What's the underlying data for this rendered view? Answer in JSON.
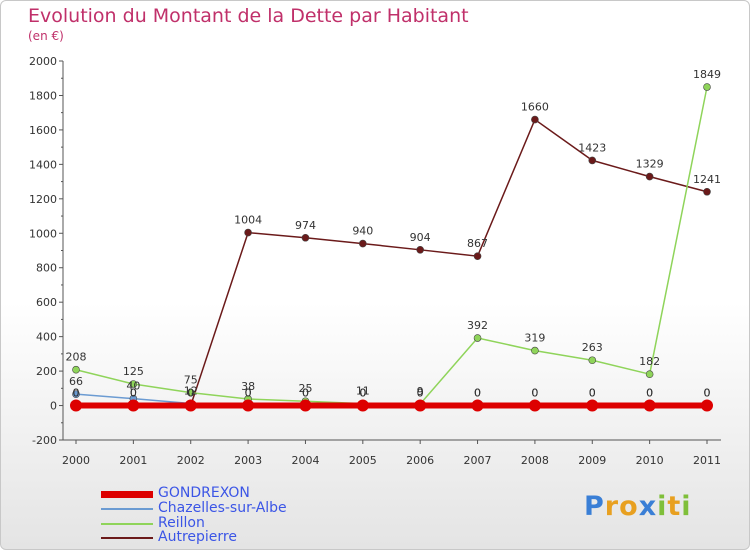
{
  "chart_data": {
    "type": "line",
    "title": "Evolution du Montant de la Dette par Habitant",
    "subtitle": "(en €)",
    "xlabel": "",
    "ylabel": "",
    "x": [
      "2000",
      "2001",
      "2002",
      "2003",
      "2004",
      "2005",
      "2006",
      "2007",
      "2008",
      "2009",
      "2010",
      "2011"
    ],
    "ylim": [
      -200,
      2000
    ],
    "yticks": [
      -200,
      0,
      200,
      400,
      600,
      800,
      1000,
      1200,
      1400,
      1600,
      1800,
      2000
    ],
    "grid": false,
    "legend_position": "bottom-left",
    "series": [
      {
        "name": "GONDREXON",
        "color": "#dd0000",
        "values": [
          0,
          0,
          0,
          0,
          0,
          0,
          0,
          0,
          0,
          0,
          0,
          0
        ]
      },
      {
        "name": "Chazelles-sur-Albe",
        "color": "#6b9bd2",
        "values": [
          66,
          40,
          12,
          0,
          0,
          0,
          0,
          0,
          0,
          0,
          0,
          0
        ]
      },
      {
        "name": "Reillon",
        "color": "#8fd45a",
        "values": [
          208,
          125,
          75,
          38,
          25,
          11,
          9,
          392,
          319,
          263,
          182,
          1849
        ]
      },
      {
        "name": "Autrepierre",
        "color": "#6b1a1a",
        "values": [
          0,
          0,
          0,
          1004,
          974,
          940,
          904,
          867,
          1660,
          1423,
          1329,
          1241
        ]
      }
    ]
  },
  "logo": {
    "text": "Proxiti",
    "letters": [
      "P",
      "r",
      "o",
      "x",
      "i",
      "t",
      "i"
    ],
    "colors": [
      "#3a7fd6",
      "#e8a020",
      "#e8a020",
      "#3a7fd6",
      "#7fbf3a",
      "#e8a020",
      "#7fbf3a"
    ]
  }
}
